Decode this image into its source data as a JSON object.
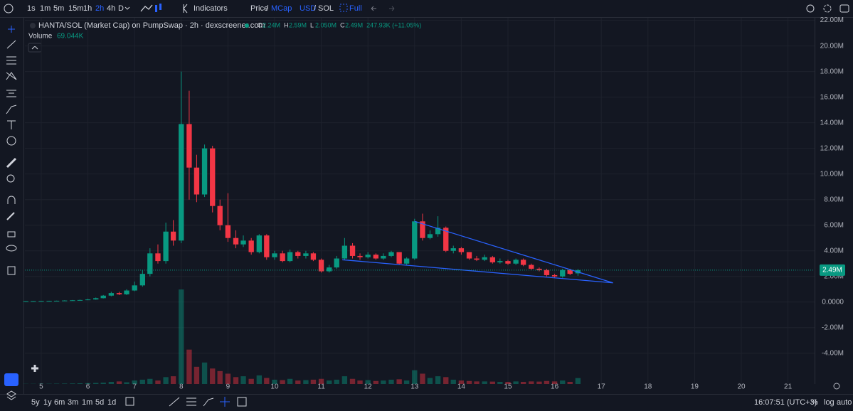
{
  "toolbar": {
    "intervals": [
      "1s",
      "1m",
      "5m",
      "15m",
      "1h",
      "2h",
      "4h",
      "D"
    ],
    "active_interval": 5,
    "indicators": "Indicators",
    "price_toggle": [
      "Price",
      "/",
      "MCap"
    ],
    "currency_toggle": [
      "USD",
      "/",
      "SOL"
    ],
    "full": "Full"
  },
  "bottom_bar": {
    "ranges": [
      "5y",
      "1y",
      "6m",
      "3m",
      "1m",
      "5d",
      "1d"
    ],
    "time": "16:07:51 (UTC+3)",
    "options": [
      "%",
      "log",
      "auto"
    ]
  },
  "chart_data": {
    "type": "candlestick",
    "title": "HANTA/SOL (Market Cap) on PumpSwap · 2h · dexscreener.com",
    "ohlc_legend": [
      {
        "key": "O",
        "label": "2.24M"
      },
      {
        "key": "H",
        "label": "2.59M"
      },
      {
        "key": "L",
        "label": "2.050M"
      },
      {
        "key": "C",
        "label": "2.49M"
      }
    ],
    "change_label": "247.93K (+11.05%)",
    "volume_title": "Volume",
    "volume_label": "69.044K",
    "up_color": "#089981",
    "down_color": "#f23645",
    "line_color": "#2962ff",
    "grid": true,
    "xlim": [
      4.65,
      21.57
    ],
    "xticks": [
      5,
      6,
      7,
      8,
      9,
      10,
      11,
      12,
      13,
      14,
      15,
      16,
      17,
      18,
      19,
      20,
      21
    ],
    "ylim": [
      -6.4,
      22.2
    ],
    "yticks": [
      {
        "value": 22,
        "label": "22.00M"
      },
      {
        "value": 20,
        "label": "20.00M"
      },
      {
        "value": 18,
        "label": "18.00M"
      },
      {
        "value": 16,
        "label": "16.00M"
      },
      {
        "value": 14,
        "label": "14.00M"
      },
      {
        "value": 12,
        "label": "12.00M"
      },
      {
        "value": 10,
        "label": "10.00M"
      },
      {
        "value": 8,
        "label": "8.00M"
      },
      {
        "value": 6,
        "label": "6.00M"
      },
      {
        "value": 4,
        "label": "4.00M"
      },
      {
        "value": 2,
        "label": "2.00M"
      },
      {
        "value": 0,
        "label": "0.0000"
      },
      {
        "value": -2,
        "label": "-2.00M"
      },
      {
        "value": -4,
        "label": "-4.00M"
      }
    ],
    "volume_ylim": [
      0,
      1200
    ],
    "x": [
      4.67,
      4.83,
      5,
      5.17,
      5.33,
      5.5,
      5.67,
      5.83,
      6,
      6.17,
      6.33,
      6.5,
      6.67,
      6.83,
      7,
      7.17,
      7.33,
      7.5,
      7.67,
      7.83,
      8,
      8.17,
      8.33,
      8.5,
      8.67,
      8.83,
      9,
      9.17,
      9.33,
      9.5,
      9.67,
      9.83,
      10,
      10.17,
      10.33,
      10.5,
      10.67,
      10.83,
      11,
      11.17,
      11.33,
      11.5,
      11.67,
      11.83,
      12,
      12.17,
      12.33,
      12.5,
      12.67,
      12.83,
      13,
      13.17,
      13.33,
      13.5,
      13.67,
      13.83,
      14,
      14.17,
      14.33,
      14.5,
      14.67,
      14.83,
      15,
      15.17,
      15.33,
      15.5,
      15.67,
      15.83,
      16,
      16.17,
      16.33,
      16.5
    ],
    "open": [
      0.05,
      0.06,
      0.07,
      0.08,
      0.09,
      0.1,
      0.12,
      0.14,
      0.16,
      0.2,
      0.3,
      0.5,
      0.7,
      0.6,
      0.9,
      1.3,
      2.2,
      3.8,
      3.2,
      5.5,
      4.8,
      13.9,
      10.5,
      8.4,
      12.0,
      7.5,
      6.0,
      5.0,
      4.5,
      4.8,
      3.9,
      5.2,
      3.5,
      3.8,
      3.2,
      3.9,
      3.6,
      3.8,
      3.3,
      2.4,
      2.7,
      3.4,
      4.4,
      3.6,
      3.5,
      3.7,
      3.4,
      3.6,
      3.9,
      3.0,
      3.4,
      6.3,
      5.0,
      5.3,
      5.8,
      4.0,
      4.2,
      3.9,
      3.4,
      3.3,
      3.5,
      3.1,
      3.2,
      3.0,
      3.3,
      2.9,
      2.6,
      2.5,
      2.1,
      2.0,
      2.5,
      2.24
    ],
    "high": [
      0.07,
      0.08,
      0.09,
      0.1,
      0.11,
      0.14,
      0.16,
      0.19,
      0.25,
      0.35,
      0.55,
      0.8,
      0.8,
      1.0,
      1.6,
      2.5,
      4.2,
      4.5,
      6.2,
      6.4,
      18.0,
      16.5,
      11.5,
      12.3,
      12.2,
      8.0,
      8.5,
      5.6,
      5.2,
      5.0,
      5.3,
      5.3,
      4.0,
      4.0,
      4.1,
      4.0,
      4.0,
      3.9,
      3.4,
      2.9,
      3.6,
      5.0,
      4.6,
      3.8,
      3.9,
      3.8,
      3.8,
      4.0,
      3.9,
      3.5,
      6.5,
      6.9,
      5.6,
      6.7,
      5.9,
      4.4,
      4.3,
      3.9,
      3.6,
      3.7,
      3.6,
      3.4,
      3.3,
      3.4,
      3.4,
      3.0,
      2.7,
      2.6,
      2.2,
      2.6,
      2.6,
      2.59
    ],
    "low": [
      0.04,
      0.05,
      0.06,
      0.07,
      0.08,
      0.09,
      0.11,
      0.13,
      0.15,
      0.18,
      0.28,
      0.45,
      0.55,
      0.55,
      0.85,
      1.2,
      2.0,
      3.0,
      3.0,
      4.4,
      4.6,
      8.0,
      7.8,
      8.2,
      7.0,
      5.6,
      4.7,
      4.2,
      4.3,
      3.7,
      3.8,
      3.3,
      3.3,
      3.1,
      3.1,
      3.4,
      3.4,
      3.2,
      2.3,
      2.3,
      2.6,
      3.3,
      3.4,
      3.3,
      3.4,
      3.3,
      3.3,
      3.5,
      2.9,
      2.9,
      3.3,
      4.8,
      4.9,
      5.1,
      3.9,
      3.8,
      3.7,
      3.3,
      3.2,
      3.2,
      3.0,
      3.0,
      2.9,
      2.9,
      2.8,
      2.5,
      2.4,
      2.0,
      1.9,
      1.9,
      2.1,
      2.05
    ],
    "close": [
      0.06,
      0.07,
      0.08,
      0.09,
      0.1,
      0.12,
      0.14,
      0.16,
      0.2,
      0.3,
      0.5,
      0.7,
      0.6,
      0.9,
      1.3,
      2.2,
      3.8,
      3.2,
      5.5,
      4.8,
      13.9,
      10.5,
      8.4,
      12.0,
      7.5,
      6.0,
      5.0,
      4.5,
      4.8,
      3.9,
      5.2,
      3.5,
      3.8,
      3.2,
      3.9,
      3.6,
      3.8,
      3.3,
      2.4,
      2.7,
      3.4,
      4.4,
      3.6,
      3.5,
      3.7,
      3.4,
      3.6,
      3.9,
      3.0,
      3.4,
      6.3,
      5.0,
      5.3,
      5.8,
      4.0,
      4.2,
      3.9,
      3.4,
      3.3,
      3.5,
      3.1,
      3.2,
      3.0,
      3.3,
      2.9,
      2.6,
      2.5,
      2.1,
      2.0,
      2.5,
      2.2,
      2.49
    ],
    "volume": [
      2,
      2,
      3,
      3,
      4,
      5,
      6,
      8,
      10,
      12,
      15,
      25,
      30,
      20,
      40,
      50,
      60,
      40,
      80,
      90,
      1100,
      400,
      200,
      250,
      180,
      150,
      120,
      80,
      90,
      60,
      100,
      70,
      50,
      45,
      60,
      40,
      45,
      50,
      60,
      40,
      50,
      90,
      60,
      40,
      45,
      35,
      40,
      50,
      55,
      40,
      160,
      120,
      70,
      90,
      80,
      50,
      40,
      35,
      30,
      30,
      28,
      25,
      25,
      30,
      25,
      30,
      28,
      35,
      30,
      40,
      25,
      69.044
    ],
    "drawings": [
      {
        "x": [
          11.45,
          17.25
        ],
        "y": [
          3.3,
          1.5
        ]
      },
      {
        "x": [
          13.0,
          17.25
        ],
        "y": [
          6.3,
          1.5
        ]
      }
    ]
  }
}
